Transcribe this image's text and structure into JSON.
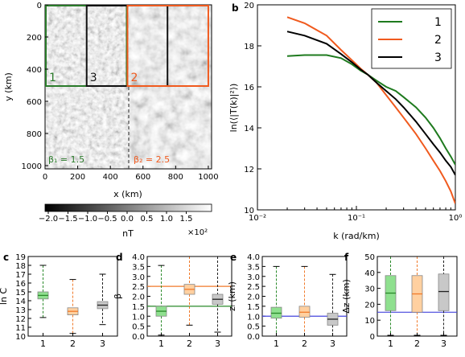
{
  "panel_a": {
    "x_ticks": [
      "0",
      "200",
      "400",
      "600",
      "800",
      "1000"
    ],
    "y_ticks": [
      "0",
      "200",
      "400",
      "600",
      "800",
      "1000"
    ],
    "xlabel": "x (km)",
    "ylabel": "y (km)",
    "boxes": [
      {
        "label": "1",
        "color": "#2a7a2a",
        "x0": 0,
        "x1": 500,
        "y0": 0,
        "y1": 500
      },
      {
        "label": "3",
        "color": "#111111",
        "x0": 250,
        "x1": 750,
        "y0": 0,
        "y1": 500
      },
      {
        "label": "2",
        "color": "#f05a1e",
        "x0": 500,
        "x1": 1000,
        "y0": 0,
        "y1": 500
      }
    ],
    "beta_left": "β₁ = 1.5",
    "beta_right": "β₂ = 2.5",
    "colorbar_ticks": [
      "−2.0",
      "−1.5",
      "−1.0",
      "−0.5",
      "0.0",
      "0.5",
      "1.0",
      "1.5"
    ],
    "colorbar_unit": "nT",
    "colorbar_scale": "×10²"
  },
  "chart_data": [
    {
      "panel": "b",
      "type": "line",
      "ylabel": "ln(⟨|T(k)|²⟩)",
      "xlabel": "k (rad/km)",
      "xscale": "log",
      "xlim": [
        0.01,
        1
      ],
      "ylim": [
        10,
        20
      ],
      "x_ticks": [
        "10⁻²",
        "10⁻¹",
        "10⁰"
      ],
      "y_ticks": [
        "10",
        "12",
        "14",
        "16",
        "18",
        "20"
      ],
      "legend_position": "top-right",
      "series": [
        {
          "name": "1",
          "color": "#1e7a1e",
          "x": [
            0.02,
            0.03,
            0.05,
            0.07,
            0.09,
            0.11,
            0.13,
            0.16,
            0.2,
            0.25,
            0.3,
            0.4,
            0.5,
            0.6,
            0.7,
            0.8,
            0.9,
            1.0
          ],
          "y": [
            17.5,
            17.55,
            17.55,
            17.4,
            17.1,
            16.8,
            16.6,
            16.3,
            16.0,
            15.8,
            15.5,
            15.0,
            14.5,
            14.0,
            13.5,
            13.0,
            12.6,
            12.2
          ]
        },
        {
          "name": "2",
          "color": "#f05a1e",
          "x": [
            0.02,
            0.03,
            0.05,
            0.07,
            0.09,
            0.11,
            0.13,
            0.16,
            0.2,
            0.25,
            0.3,
            0.4,
            0.5,
            0.6,
            0.7,
            0.8,
            0.9,
            1.0
          ],
          "y": [
            19.4,
            19.1,
            18.5,
            17.8,
            17.3,
            16.9,
            16.6,
            16.2,
            15.6,
            15.0,
            14.5,
            13.7,
            13.0,
            12.4,
            11.9,
            11.4,
            10.9,
            10.3
          ]
        },
        {
          "name": "3",
          "color": "#000000",
          "x": [
            0.02,
            0.03,
            0.05,
            0.07,
            0.09,
            0.11,
            0.13,
            0.16,
            0.2,
            0.25,
            0.3,
            0.4,
            0.5,
            0.6,
            0.7,
            0.8,
            0.9,
            1.0
          ],
          "y": [
            18.7,
            18.5,
            18.1,
            17.6,
            17.2,
            16.85,
            16.6,
            16.2,
            15.8,
            15.4,
            15.0,
            14.3,
            13.7,
            13.2,
            12.8,
            12.4,
            12.1,
            11.7
          ]
        }
      ]
    },
    {
      "panel": "c",
      "type": "box",
      "ylabel": "ln C",
      "ylim": [
        10,
        19
      ],
      "y_ticks": [
        "10",
        "11",
        "12",
        "13",
        "14",
        "15",
        "16",
        "17",
        "18",
        "19"
      ],
      "categories": [
        "1",
        "2",
        "3"
      ],
      "colors": [
        "#2a8a2a",
        "#f07a2a",
        "#222222"
      ],
      "fills": [
        "#8fe08f",
        "#ffd0a0",
        "#c8c8c8"
      ],
      "boxes": [
        {
          "whislo": 12.1,
          "q1": 14.2,
          "med": 14.6,
          "q3": 15.0,
          "whishi": 18.0
        },
        {
          "whislo": 10.3,
          "q1": 12.4,
          "med": 12.8,
          "q3": 13.2,
          "whishi": 16.4
        },
        {
          "whislo": 11.3,
          "q1": 13.1,
          "med": 13.5,
          "q3": 13.9,
          "whishi": 17.0
        }
      ]
    },
    {
      "panel": "d",
      "type": "box",
      "ylabel": "β",
      "ylim": [
        0,
        4
      ],
      "y_ticks": [
        "0.0",
        "0.5",
        "1.0",
        "1.5",
        "2.0",
        "2.5",
        "3.0",
        "3.5",
        "4.0"
      ],
      "categories": [
        "1",
        "2",
        "3"
      ],
      "colors": [
        "#2a8a2a",
        "#f07a2a",
        "#222222"
      ],
      "fills": [
        "#8fe08f",
        "#ffd0a0",
        "#c8c8c8"
      ],
      "hlines": [
        {
          "y": 1.5,
          "color": "#2a8a2a"
        },
        {
          "y": 2.5,
          "color": "#f07a2a"
        }
      ],
      "boxes": [
        {
          "whislo": 0.05,
          "q1": 1.0,
          "med": 1.25,
          "q3": 1.5,
          "whishi": 3.55
        },
        {
          "whislo": 0.55,
          "q1": 2.1,
          "med": 2.35,
          "q3": 2.6,
          "whishi": 4.0
        },
        {
          "whislo": 0.2,
          "q1": 1.6,
          "med": 1.85,
          "q3": 2.1,
          "whishi": 4.0
        }
      ]
    },
    {
      "panel": "e",
      "type": "box",
      "ylabel": "zᵢ (km)",
      "ylim": [
        0,
        4
      ],
      "y_ticks": [
        "0.0",
        "0.5",
        "1.0",
        "1.5",
        "2.0",
        "2.5",
        "3.0",
        "3.5",
        "4.0"
      ],
      "categories": [
        "1",
        "2",
        "3"
      ],
      "colors": [
        "#2a8a2a",
        "#f07a2a",
        "#222222"
      ],
      "fills": [
        "#8fe08f",
        "#ffd0a0",
        "#c8c8c8"
      ],
      "hlines": [
        {
          "y": 1.0,
          "color": "#4444dd"
        }
      ],
      "boxes": [
        {
          "whislo": 0.0,
          "q1": 0.9,
          "med": 1.15,
          "q3": 1.45,
          "whishi": 3.5
        },
        {
          "whislo": 0.0,
          "q1": 0.95,
          "med": 1.2,
          "q3": 1.5,
          "whishi": 3.5
        },
        {
          "whislo": 0.0,
          "q1": 0.55,
          "med": 0.85,
          "q3": 1.15,
          "whishi": 3.1
        }
      ]
    },
    {
      "panel": "f",
      "type": "box",
      "ylabel": "Δz (km)",
      "ylim": [
        0,
        50
      ],
      "y_ticks": [
        "0",
        "10",
        "20",
        "30",
        "40",
        "50"
      ],
      "categories": [
        "1",
        "2",
        "3"
      ],
      "colors": [
        "#2a8a2a",
        "#f07a2a",
        "#222222"
      ],
      "fills": [
        "#8fe08f",
        "#ffd0a0",
        "#c8c8c8"
      ],
      "hlines": [
        {
          "y": 15,
          "color": "#4444dd"
        }
      ],
      "boxes": [
        {
          "whislo": 0.5,
          "q1": 16,
          "med": 27,
          "q3": 38,
          "whishi": 50
        },
        {
          "whislo": 0.5,
          "q1": 15,
          "med": 26.5,
          "q3": 38,
          "whishi": 50
        },
        {
          "whislo": 0.5,
          "q1": 16,
          "med": 28,
          "q3": 39,
          "whishi": 50
        }
      ]
    }
  ],
  "panel_letters": {
    "a": "",
    "b": "b",
    "c": "c",
    "d": "d",
    "e": "e",
    "f": "f"
  }
}
